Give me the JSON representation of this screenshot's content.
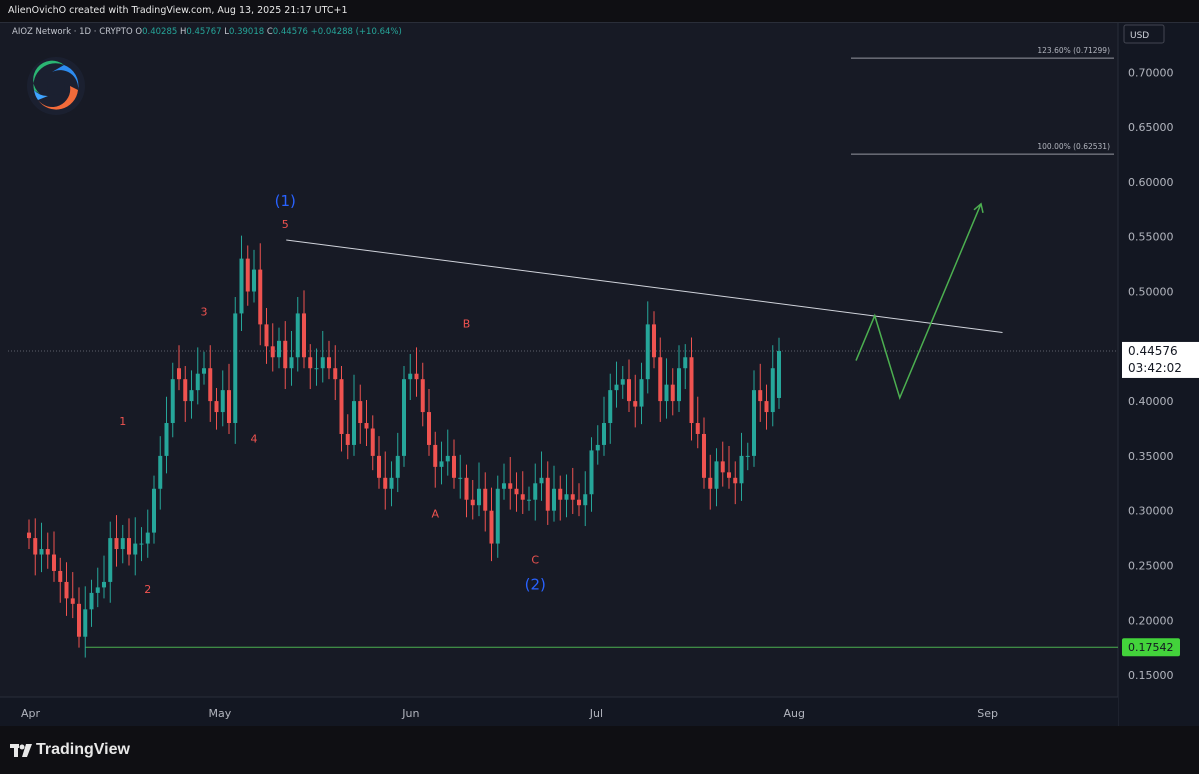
{
  "header": {
    "credit": "AlienOvichO created with TradingView.com, Aug 13, 2025 21:17 UTC+1"
  },
  "legend": {
    "symbol": "AIOZ Network · 1D · CRYPTO",
    "open_label": "O",
    "open": "0.40285",
    "high_label": "H",
    "high": "0.45767",
    "low_label": "L",
    "low": "0.39018",
    "close_label": "C",
    "close": "0.44576",
    "change": "+0.04288 (+10.64%)"
  },
  "footer": {
    "brand": "TradingView"
  },
  "colors": {
    "up": "#26a69a",
    "down": "#ef5350",
    "wave_label_red": "#ef5350",
    "wave_label_blue": "#2962ff",
    "projection": "#4caf50",
    "support": "#4caf50",
    "trendline": "#d1d4dc"
  },
  "chart_data": {
    "type": "candlestick",
    "currency": "USD",
    "y_range": [
      0.13,
      0.745
    ],
    "y_ticks": [
      "0.70000",
      "0.65000",
      "0.60000",
      "0.55000",
      "0.50000",
      "0.45000",
      "0.40000",
      "0.35000",
      "0.30000",
      "0.25000",
      "0.20000",
      "0.15000"
    ],
    "x_range_days": [
      0,
      183
    ],
    "x_ticks": [
      {
        "label": "Apr",
        "day": 0
      },
      {
        "label": "May",
        "day": 30
      },
      {
        "label": "Jun",
        "day": 61
      },
      {
        "label": "Jul",
        "day": 91
      },
      {
        "label": "Aug",
        "day": 122
      },
      {
        "label": "Sep",
        "day": 153
      }
    ],
    "closes": [
      0.275,
      0.26,
      0.265,
      0.26,
      0.245,
      0.235,
      0.22,
      0.215,
      0.185,
      0.21,
      0.225,
      0.23,
      0.235,
      0.275,
      0.265,
      0.275,
      0.26,
      0.27,
      0.27,
      0.28,
      0.32,
      0.35,
      0.38,
      0.42,
      0.42,
      0.4,
      0.41,
      0.425,
      0.43,
      0.4,
      0.39,
      0.41,
      0.38,
      0.48,
      0.53,
      0.5,
      0.52,
      0.47,
      0.45,
      0.44,
      0.455,
      0.43,
      0.44,
      0.48,
      0.44,
      0.43,
      0.43,
      0.44,
      0.43,
      0.42,
      0.37,
      0.36,
      0.4,
      0.38,
      0.375,
      0.35,
      0.33,
      0.32,
      0.33,
      0.35,
      0.42,
      0.425,
      0.42,
      0.39,
      0.36,
      0.34,
      0.345,
      0.35,
      0.33,
      0.33,
      0.31,
      0.305,
      0.32,
      0.3,
      0.27,
      0.32,
      0.325,
      0.32,
      0.315,
      0.31,
      0.31,
      0.325,
      0.33,
      0.3,
      0.32,
      0.31,
      0.315,
      0.31,
      0.305,
      0.315,
      0.355,
      0.36,
      0.38,
      0.41,
      0.415,
      0.42,
      0.4,
      0.395,
      0.42,
      0.47,
      0.44,
      0.4,
      0.415,
      0.4,
      0.43,
      0.44,
      0.38,
      0.37,
      0.33,
      0.32,
      0.345,
      0.335,
      0.33,
      0.325,
      0.35,
      0.35,
      0.41,
      0.4,
      0.39,
      0.43,
      0.44576
    ],
    "opens": [
      0.28,
      0.275,
      0.26,
      0.265,
      0.26,
      0.245,
      0.235,
      0.22,
      0.215,
      0.185,
      0.21,
      0.225,
      0.23,
      0.235,
      0.275,
      0.265,
      0.275,
      0.26,
      0.27,
      0.27,
      0.28,
      0.32,
      0.35,
      0.38,
      0.43,
      0.42,
      0.4,
      0.41,
      0.425,
      0.43,
      0.4,
      0.39,
      0.41,
      0.38,
      0.48,
      0.53,
      0.5,
      0.52,
      0.47,
      0.45,
      0.44,
      0.455,
      0.43,
      0.44,
      0.48,
      0.44,
      0.43,
      0.43,
      0.44,
      0.43,
      0.42,
      0.37,
      0.36,
      0.4,
      0.38,
      0.375,
      0.35,
      0.33,
      0.32,
      0.33,
      0.35,
      0.42,
      0.425,
      0.42,
      0.39,
      0.36,
      0.34,
      0.345,
      0.35,
      0.33,
      0.33,
      0.31,
      0.305,
      0.32,
      0.3,
      0.27,
      0.32,
      0.325,
      0.32,
      0.315,
      0.31,
      0.31,
      0.325,
      0.33,
      0.3,
      0.32,
      0.31,
      0.315,
      0.31,
      0.305,
      0.315,
      0.355,
      0.36,
      0.38,
      0.41,
      0.415,
      0.42,
      0.4,
      0.395,
      0.42,
      0.47,
      0.44,
      0.4,
      0.415,
      0.4,
      0.43,
      0.44,
      0.38,
      0.37,
      0.33,
      0.32,
      0.345,
      0.335,
      0.33,
      0.325,
      0.35,
      0.35,
      0.41,
      0.4,
      0.39,
      0.40285
    ],
    "candle_day_start": 0,
    "candle_day_step": 1,
    "fib_levels": [
      {
        "label": "123.60% (0.71299)",
        "price": 0.71299,
        "day_from": 128,
        "day_to": 168
      },
      {
        "label": "100.00% (0.62531)",
        "price": 0.62531,
        "day_from": 128,
        "day_to": 168
      }
    ],
    "trendline": {
      "from": {
        "day": 41,
        "price": 0.547
      },
      "to": {
        "day": 150,
        "price": 0.469
      }
    },
    "support_line": {
      "price": 0.17542,
      "day_from": 9,
      "label": "0.17542"
    },
    "current_price": {
      "label": "0.44576",
      "countdown": "03:42:02",
      "price": 0.44576
    },
    "projection_path": [
      {
        "day": 132,
        "price": 0.437
      },
      {
        "day": 135,
        "price": 0.478
      },
      {
        "day": 139,
        "price": 0.403
      },
      {
        "day": 152,
        "price": 0.58
      }
    ],
    "wave_labels": [
      {
        "text": "(1)",
        "day": 41,
        "price": 0.578,
        "color": "blue"
      },
      {
        "text": "5",
        "day": 41,
        "price": 0.558,
        "color": "red"
      },
      {
        "text": "3",
        "day": 28,
        "price": 0.478,
        "color": "red"
      },
      {
        "text": "4",
        "day": 36,
        "price": 0.362,
        "color": "red"
      },
      {
        "text": "1",
        "day": 15,
        "price": 0.378,
        "color": "red"
      },
      {
        "text": "2",
        "day": 19,
        "price": 0.225,
        "color": "red"
      },
      {
        "text": "B",
        "day": 70,
        "price": 0.467,
        "color": "red"
      },
      {
        "text": "A",
        "day": 65,
        "price": 0.294,
        "color": "red"
      },
      {
        "text": "C",
        "day": 81,
        "price": 0.252,
        "color": "red"
      },
      {
        "text": "(2)",
        "day": 81,
        "price": 0.228,
        "color": "blue"
      }
    ]
  }
}
